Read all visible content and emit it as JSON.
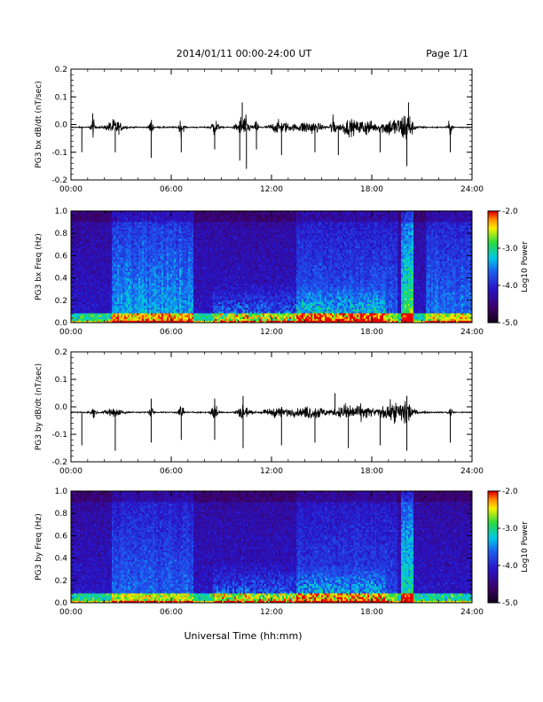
{
  "header": {
    "title": "2014/01/11  00:00-24:00 UT",
    "page": "Page 1/1"
  },
  "footer": {
    "xlabel": "Universal Time (hh:mm)"
  },
  "chart_data": [
    {
      "id": "bx_dbdt",
      "type": "line",
      "ylabel": "PG3 bx dB/dt (nT/sec)",
      "x_tick_labels": [
        "00:00",
        "06:00",
        "12:00",
        "18:00",
        "24:00"
      ],
      "xlim": [
        0,
        24
      ],
      "ylim": [
        -0.2,
        0.2
      ],
      "y_tick_labels": [
        "0.2",
        "0.1",
        "0.0",
        "-0.1",
        "-0.2"
      ],
      "baseline": -0.01,
      "bursts": [
        {
          "t": 1.3,
          "w": 0.12,
          "a": 0.06
        },
        {
          "t": 2.6,
          "w": 0.45,
          "a": 0.05
        },
        {
          "t": 4.8,
          "w": 0.1,
          "a": 0.06
        },
        {
          "t": 6.6,
          "w": 0.15,
          "a": 0.05
        },
        {
          "t": 8.6,
          "w": 0.2,
          "a": 0.06
        },
        {
          "t": 10.3,
          "w": 0.35,
          "a": 0.08
        },
        {
          "t": 11.1,
          "w": 0.1,
          "a": 0.05
        },
        {
          "t": 12.5,
          "w": 0.6,
          "a": 0.04
        },
        {
          "t": 14.2,
          "w": 0.8,
          "a": 0.04
        },
        {
          "t": 15.7,
          "w": 0.15,
          "a": 0.07
        },
        {
          "t": 16.6,
          "w": 0.5,
          "a": 0.05
        },
        {
          "t": 17.6,
          "w": 0.5,
          "a": 0.05
        },
        {
          "t": 19.3,
          "w": 0.9,
          "a": 0.06
        },
        {
          "t": 20.1,
          "w": 0.3,
          "a": 0.09
        },
        {
          "t": 22.7,
          "w": 0.12,
          "a": 0.05
        }
      ],
      "spikes": [
        {
          "t": 0.65,
          "a": -0.09
        },
        {
          "t": 1.3,
          "a": 0.05
        },
        {
          "t": 2.65,
          "a": -0.09
        },
        {
          "t": 4.8,
          "a": -0.11
        },
        {
          "t": 6.6,
          "a": -0.09
        },
        {
          "t": 8.6,
          "a": -0.08
        },
        {
          "t": 10.1,
          "a": -0.12
        },
        {
          "t": 10.25,
          "a": 0.09
        },
        {
          "t": 10.5,
          "a": -0.15
        },
        {
          "t": 11.1,
          "a": -0.08
        },
        {
          "t": 12.6,
          "a": -0.1
        },
        {
          "t": 14.6,
          "a": -0.09
        },
        {
          "t": 16.0,
          "a": -0.1
        },
        {
          "t": 18.5,
          "a": -0.09
        },
        {
          "t": 20.1,
          "a": -0.14
        },
        {
          "t": 20.2,
          "a": 0.09
        },
        {
          "t": 22.7,
          "a": -0.09
        }
      ]
    },
    {
      "id": "bx_freq",
      "type": "heatmap",
      "ylabel": "PG3 bx Freq (Hz)",
      "x_tick_labels": [
        "00:00",
        "06:00",
        "12:00",
        "18:00",
        "24:00"
      ],
      "xlim": [
        0,
        24
      ],
      "ylim": [
        0.0,
        1.0
      ],
      "y_tick_labels": [
        "1.0",
        "0.8",
        "0.6",
        "0.4",
        "0.2",
        "0.0"
      ],
      "colorbar": {
        "label": "Log10 Power",
        "ticks": [
          "-2.0",
          "-3.0",
          "-4.0",
          "-5.0"
        ],
        "range": [
          -5.0,
          -2.0
        ]
      },
      "features": [
        {
          "t0": 2.4,
          "t1": 7.3,
          "amp": 0.55
        },
        {
          "t0": 13.5,
          "t1": 19.5,
          "amp": 0.35
        },
        {
          "t0": 19.8,
          "t1": 20.5,
          "amp": 0.9
        },
        {
          "t0": 21.2,
          "t1": 24,
          "amp": 0.4
        }
      ],
      "low_freq_band": {
        "t0": 8.5,
        "t1": 18.8,
        "top_hz": 0.35
      }
    },
    {
      "id": "by_dbdt",
      "type": "line",
      "ylabel": "PG3 by dB/dt (nT/sec)",
      "x_tick_labels": [
        "00:00",
        "06:00",
        "12:00",
        "18:00",
        "24:00"
      ],
      "xlim": [
        0,
        24
      ],
      "ylim": [
        -0.2,
        0.2
      ],
      "y_tick_labels": [
        "0.2",
        "0.1",
        "0.0",
        "-0.1",
        "-0.2"
      ],
      "baseline": -0.02,
      "bursts": [
        {
          "t": 1.3,
          "w": 0.15,
          "a": 0.04
        },
        {
          "t": 2.6,
          "w": 0.45,
          "a": 0.04
        },
        {
          "t": 4.8,
          "w": 0.1,
          "a": 0.05
        },
        {
          "t": 6.6,
          "w": 0.15,
          "a": 0.05
        },
        {
          "t": 8.6,
          "w": 0.2,
          "a": 0.05
        },
        {
          "t": 10.3,
          "w": 0.35,
          "a": 0.05
        },
        {
          "t": 12.5,
          "w": 0.9,
          "a": 0.03
        },
        {
          "t": 14.5,
          "w": 0.9,
          "a": 0.04
        },
        {
          "t": 16.5,
          "w": 0.6,
          "a": 0.05
        },
        {
          "t": 17.5,
          "w": 0.6,
          "a": 0.04
        },
        {
          "t": 19.4,
          "w": 0.9,
          "a": 0.06
        },
        {
          "t": 20.1,
          "w": 0.3,
          "a": 0.07
        },
        {
          "t": 22.7,
          "w": 0.12,
          "a": 0.04
        }
      ],
      "spikes": [
        {
          "t": 0.65,
          "a": -0.12
        },
        {
          "t": 2.65,
          "a": -0.14
        },
        {
          "t": 4.8,
          "a": -0.11
        },
        {
          "t": 6.6,
          "a": -0.1
        },
        {
          "t": 8.6,
          "a": -0.1
        },
        {
          "t": 10.3,
          "a": -0.13
        },
        {
          "t": 12.6,
          "a": -0.12
        },
        {
          "t": 14.6,
          "a": -0.11
        },
        {
          "t": 16.6,
          "a": -0.13
        },
        {
          "t": 18.5,
          "a": -0.12
        },
        {
          "t": 20.1,
          "a": -0.14
        },
        {
          "t": 22.7,
          "a": -0.11
        },
        {
          "t": 4.8,
          "a": 0.05
        },
        {
          "t": 8.6,
          "a": 0.05
        },
        {
          "t": 10.3,
          "a": 0.06
        },
        {
          "t": 15.8,
          "a": 0.07
        },
        {
          "t": 20.1,
          "a": 0.06
        }
      ]
    },
    {
      "id": "by_freq",
      "type": "heatmap",
      "ylabel": "PG3 by Freq (Hz)",
      "x_tick_labels": [
        "00:00",
        "06:00",
        "12:00",
        "18:00",
        "24:00"
      ],
      "xlim": [
        0,
        24
      ],
      "ylim": [
        0.0,
        1.0
      ],
      "y_tick_labels": [
        "1.0",
        "0.8",
        "0.6",
        "0.4",
        "0.2",
        "0.0"
      ],
      "colorbar": {
        "label": "Log10 Power",
        "ticks": [
          "-2.0",
          "-3.0",
          "-4.0",
          "-5.0"
        ],
        "range": [
          -5.0,
          -2.0
        ]
      },
      "features": [
        {
          "t0": 2.4,
          "t1": 7.3,
          "amp": 0.35
        },
        {
          "t0": 13.5,
          "t1": 19.5,
          "amp": 0.25
        },
        {
          "t0": 19.8,
          "t1": 20.5,
          "amp": 0.85
        }
      ],
      "low_freq_band": {
        "t0": 8.5,
        "t1": 18.8,
        "top_hz": 0.35
      }
    }
  ]
}
